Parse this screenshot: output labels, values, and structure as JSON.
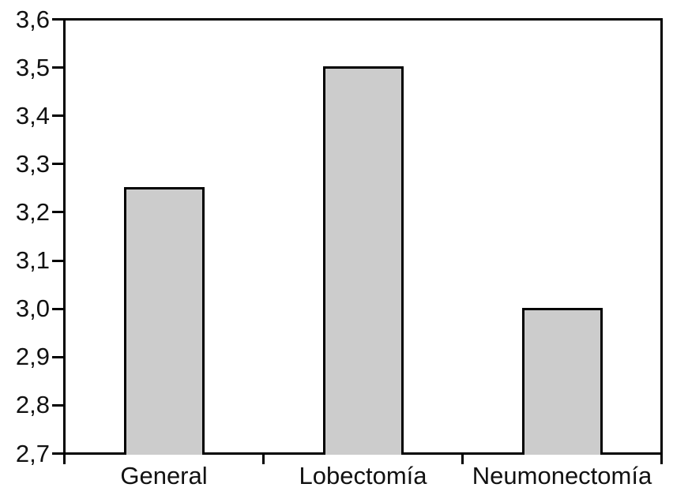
{
  "chart_data": {
    "type": "bar",
    "categories": [
      "General",
      "Lobectomía",
      "Neumonectomía"
    ],
    "values": [
      3.25,
      3.5,
      3.0
    ],
    "title": "",
    "xlabel": "",
    "ylabel": "",
    "ylim": [
      2.7,
      3.6
    ],
    "ytick_step": 0.1,
    "ytick_labels": [
      "2,7",
      "2,8",
      "2,9",
      "3,0",
      "3,1",
      "3,2",
      "3,3",
      "3,4",
      "3,5",
      "3,6"
    ],
    "decimal_separator": ",",
    "grid": false,
    "legend": null,
    "colors": {
      "bar_fill": "#cccccc",
      "bar_border": "#000000",
      "axis": "#000000",
      "background": "#ffffff",
      "text": "#111111"
    }
  }
}
